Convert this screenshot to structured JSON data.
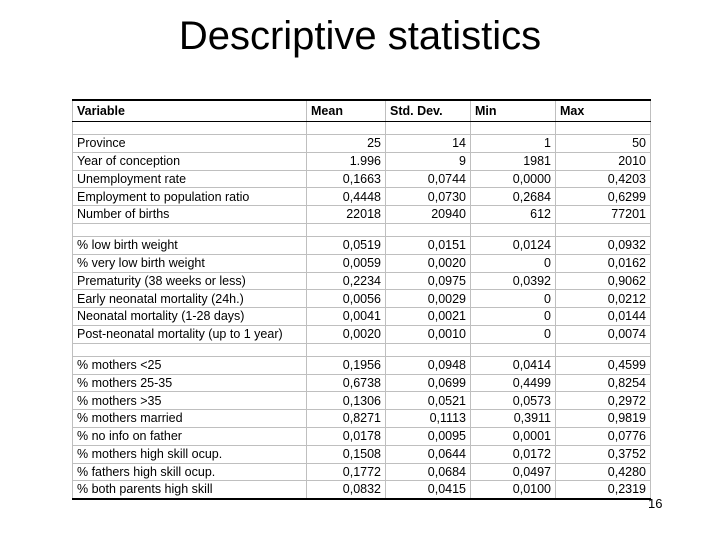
{
  "slide": {
    "title": "Descriptive statistics",
    "page_number": "16"
  },
  "colors": {
    "background": "#ffffff",
    "text": "#000000",
    "grid_line": "#bfbfbf",
    "strong_border": "#000000"
  },
  "chart_data": {
    "type": "table",
    "title": "Descriptive statistics",
    "columns": [
      "Variable",
      "Mean",
      "Std. Dev.",
      "Min",
      "Max"
    ],
    "sections": [
      {
        "rows": [
          {
            "variable": "Province",
            "mean": "25",
            "std_dev": "14",
            "min": "1",
            "max": "50"
          },
          {
            "variable": "Year of conception",
            "mean": "1.996",
            "std_dev": "9",
            "min": "1981",
            "max": "2010"
          },
          {
            "variable": "Unemployment rate",
            "mean": "0,1663",
            "std_dev": "0,0744",
            "min": "0,0000",
            "max": "0,4203"
          },
          {
            "variable": "Employment to population ratio",
            "mean": "0,4448",
            "std_dev": "0,0730",
            "min": "0,2684",
            "max": "0,6299"
          },
          {
            "variable": "Number of births",
            "mean": "22018",
            "std_dev": "20940",
            "min": "612",
            "max": "77201"
          }
        ]
      },
      {
        "rows": [
          {
            "variable": "% low birth weight",
            "mean": "0,0519",
            "std_dev": "0,0151",
            "min": "0,0124",
            "max": "0,0932"
          },
          {
            "variable": "% very low birth weight",
            "mean": "0,0059",
            "std_dev": "0,0020",
            "min": "0",
            "max": "0,0162"
          },
          {
            "variable": "Prematurity (38 weeks or less)",
            "mean": "0,2234",
            "std_dev": "0,0975",
            "min": "0,0392",
            "max": "0,9062"
          },
          {
            "variable": "Early neonatal mortality (24h.)",
            "mean": "0,0056",
            "std_dev": "0,0029",
            "min": "0",
            "max": "0,0212"
          },
          {
            "variable": "Neonatal mortality (1-28 days)",
            "mean": "0,0041",
            "std_dev": "0,0021",
            "min": "0",
            "max": "0,0144"
          },
          {
            "variable": "Post-neonatal mortality (up to 1 year)",
            "mean": "0,0020",
            "std_dev": "0,0010",
            "min": "0",
            "max": "0,0074"
          }
        ]
      },
      {
        "rows": [
          {
            "variable": "% mothers <25",
            "mean": "0,1956",
            "std_dev": "0,0948",
            "min": "0,0414",
            "max": "0,4599"
          },
          {
            "variable": "% mothers 25-35",
            "mean": "0,6738",
            "std_dev": "0,0699",
            "min": "0,4499",
            "max": "0,8254"
          },
          {
            "variable": "% mothers >35",
            "mean": "0,1306",
            "std_dev": "0,0521",
            "min": "0,0573",
            "max": "0,2972"
          },
          {
            "variable": "% mothers married",
            "mean": "0,8271",
            "std_dev": "0,1113",
            "min": "0,3911",
            "max": "0,9819"
          },
          {
            "variable": "% no info on father",
            "mean": "0,0178",
            "std_dev": "0,0095",
            "min": "0,0001",
            "max": "0,0776"
          },
          {
            "variable": "% mothers high skill ocup.",
            "mean": "0,1508",
            "std_dev": "0,0644",
            "min": "0,0172",
            "max": "0,3752"
          },
          {
            "variable": "% fathers high skill ocup.",
            "mean": "0,1772",
            "std_dev": "0,0684",
            "min": "0,0497",
            "max": "0,4280"
          },
          {
            "variable": "% both parents high skill",
            "mean": "0,0832",
            "std_dev": "0,0415",
            "min": "0,0100",
            "max": "0,2319"
          }
        ]
      }
    ]
  }
}
